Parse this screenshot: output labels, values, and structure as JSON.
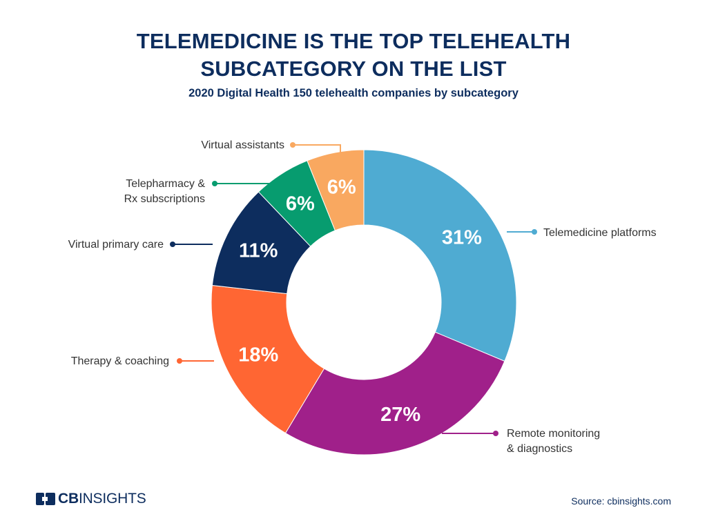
{
  "title_lines": [
    "TELEMEDICINE IS THE TOP TELEHEALTH",
    "SUBCATEGORY ON THE LIST"
  ],
  "subtitle": "2020 Digital Health 150 telehealth companies by subcategory",
  "chart_data": {
    "type": "pie",
    "variant": "donut",
    "title": "TELEMEDICINE IS THE TOP TELEHEALTH SUBCATEGORY ON THE LIST",
    "subtitle": "2020 Digital Health 150 telehealth companies by subcategory",
    "unit": "%",
    "slices": [
      {
        "label_lines": [
          "Telemedicine platforms"
        ],
        "value": 31,
        "display": "31%",
        "color": "#4fabd2"
      },
      {
        "label_lines": [
          "Remote monitoring",
          "& diagnostics"
        ],
        "value": 27,
        "display": "27%",
        "color": "#a0208a"
      },
      {
        "label_lines": [
          "Therapy & coaching"
        ],
        "value": 18,
        "display": "18%",
        "color": "#ff6633"
      },
      {
        "label_lines": [
          "Virtual primary care"
        ],
        "value": 11,
        "display": "11%",
        "color": "#0d2d5e"
      },
      {
        "label_lines": [
          "Telepharmacy &",
          "Rx subscriptions"
        ],
        "value": 6,
        "display": "6%",
        "color": "#079c6f"
      },
      {
        "label_lines": [
          "Virtual assistants"
        ],
        "value": 6,
        "display": "6%",
        "color": "#f9a860"
      }
    ]
  },
  "footer": {
    "logo_bold": "CB",
    "logo_regular": "INSIGHTS",
    "source": "Source: cbinsights.com"
  },
  "colors": {
    "navy": "#0d2d5e"
  }
}
